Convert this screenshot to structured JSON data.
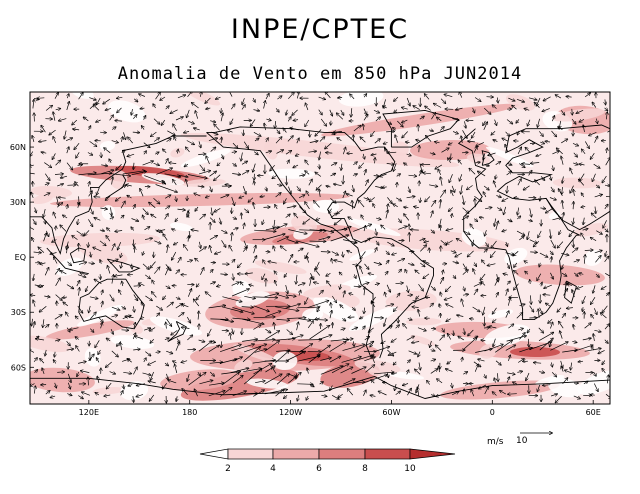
{
  "header": {
    "title": "INPE/CPTEC",
    "subtitle": "Anomalia de Vento em 850 hPa JUN2014"
  },
  "axes": {
    "lat_labels": [
      "60N",
      "30N",
      "EQ",
      "30S",
      "60S"
    ],
    "lat_values": [
      60,
      30,
      0,
      -30,
      -60
    ],
    "lon_labels": [
      "120E",
      "180",
      "120W",
      "60W",
      "0",
      "60E"
    ],
    "lon_values": [
      120,
      180,
      240,
      300,
      360,
      420
    ],
    "lon_range": [
      85,
      430
    ],
    "lat_range": [
      -80,
      90
    ]
  },
  "colorbar": {
    "ticks": [
      "2",
      "4",
      "6",
      "8",
      "10"
    ],
    "colors": [
      "#ffffff",
      "#f7d6d6",
      "#ecaaaa",
      "#dc7e7e",
      "#c94e4e",
      "#b52e2e"
    ]
  },
  "reference_vector": {
    "unit": "m/s",
    "value": "10"
  },
  "colors": {
    "shade_light": "#f7d6d6",
    "shade_mid": "#ecaaaa",
    "shade_dark": "#dc7e7e",
    "shade_darkest": "#c94e4e"
  }
}
